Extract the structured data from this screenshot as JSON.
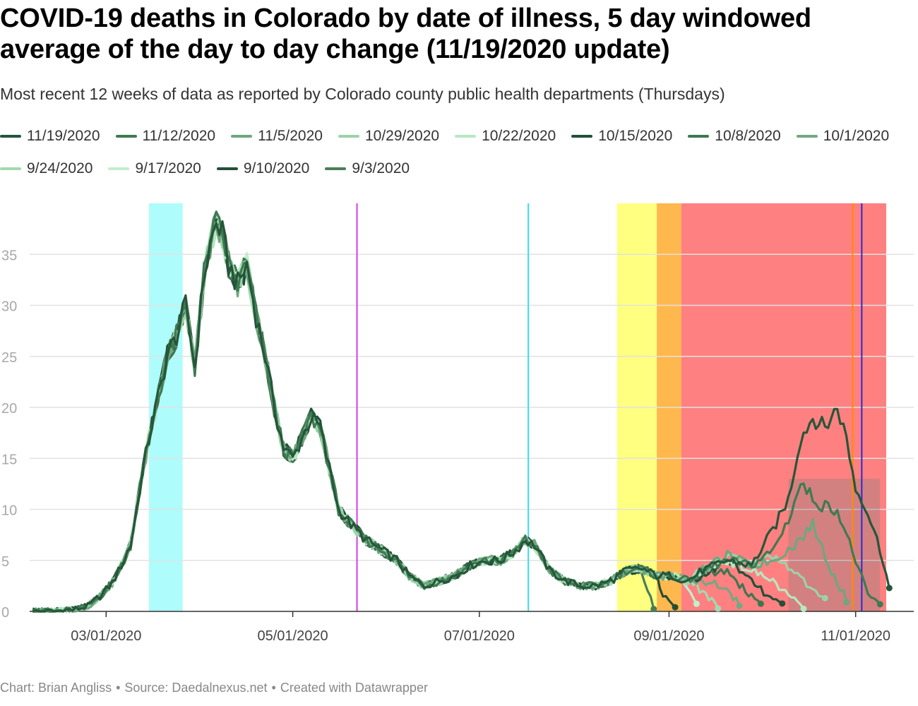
{
  "title": "COVID-19 deaths in Colorado by date of illness, 5 day windowed average of the day to day change (11/19/2020 update)",
  "subtitle": "Most recent 12 weeks of data as reported by Colorado county public health departments (Thursdays)",
  "footer": {
    "chart_by": "Chart: Brian Angliss",
    "source": "Source: Daedalnexus.net",
    "created": "Created with Datawrapper",
    "separator": "•"
  },
  "chart_data": {
    "type": "line",
    "title": "COVID-19 deaths in Colorado by date of illness, 5 day windowed average of the day to day change (11/19/2020 update)",
    "subtitle": "Most recent 12 weeks of data as reported by Colorado county public health departments (Thursdays)",
    "xlabel": "",
    "ylabel": "",
    "x_domain": [
      "2020-02-05",
      "2020-11-20"
    ],
    "ylim": [
      0,
      40
    ],
    "y_ticks": [
      0,
      5,
      10,
      15,
      20,
      25,
      30,
      35
    ],
    "x_ticks": [
      {
        "date": "2020-03-01",
        "label": "03/01/2020"
      },
      {
        "date": "2020-05-01",
        "label": "05/01/2020"
      },
      {
        "date": "2020-07-01",
        "label": "07/01/2020"
      },
      {
        "date": "2020-09-01",
        "label": "09/01/2020"
      },
      {
        "date": "2020-11-01",
        "label": "11/01/2020"
      }
    ],
    "grid": "horizontal",
    "legend_position": "top",
    "shaded_periods": [
      {
        "start": "2020-03-15",
        "end": "2020-03-26",
        "color": "#aefcfc"
      },
      {
        "start": "2020-08-15",
        "end": "2020-08-28",
        "color": "#ffff80"
      },
      {
        "start": "2020-08-28",
        "end": "2020-09-05",
        "color": "#ffb84d"
      },
      {
        "start": "2020-09-05",
        "end": "2020-11-11",
        "color": "#ff8080"
      }
    ],
    "event_lines": [
      {
        "date": "2020-05-22",
        "color": "#d43de2"
      },
      {
        "date": "2020-07-17",
        "color": "#33e0f0"
      },
      {
        "date": "2020-10-31",
        "color": "#ff8a00"
      },
      {
        "date": "2020-11-03",
        "color": "#2a2ad6"
      }
    ],
    "highlight_area": {
      "start": "2020-10-10",
      "end": "2020-11-09",
      "color": "#808080",
      "opacity": 0.35
    },
    "base_curve": [
      [
        "2020-02-06",
        0
      ],
      [
        "2020-02-13",
        0
      ],
      [
        "2020-02-20",
        0.2
      ],
      [
        "2020-02-24",
        0.5
      ],
      [
        "2020-02-28",
        1.5
      ],
      [
        "2020-03-03",
        2.8
      ],
      [
        "2020-03-06",
        4.5
      ],
      [
        "2020-03-09",
        6.5
      ],
      [
        "2020-03-12",
        12
      ],
      [
        "2020-03-15",
        17
      ],
      [
        "2020-03-18",
        21
      ],
      [
        "2020-03-21",
        25
      ],
      [
        "2020-03-24",
        27
      ],
      [
        "2020-03-27",
        30
      ],
      [
        "2020-03-30",
        24
      ],
      [
        "2020-04-02",
        33
      ],
      [
        "2020-04-04",
        36
      ],
      [
        "2020-04-06",
        38
      ],
      [
        "2020-04-08",
        37
      ],
      [
        "2020-04-10",
        34
      ],
      [
        "2020-04-13",
        32
      ],
      [
        "2020-04-16",
        34
      ],
      [
        "2020-04-19",
        29
      ],
      [
        "2020-04-22",
        25
      ],
      [
        "2020-04-25",
        20
      ],
      [
        "2020-04-28",
        16
      ],
      [
        "2020-05-01",
        15
      ],
      [
        "2020-05-04",
        17
      ],
      [
        "2020-05-07",
        19
      ],
      [
        "2020-05-10",
        18
      ],
      [
        "2020-05-13",
        14
      ],
      [
        "2020-05-16",
        10
      ],
      [
        "2020-05-20",
        8.5
      ],
      [
        "2020-05-25",
        7
      ],
      [
        "2020-05-30",
        6
      ],
      [
        "2020-06-04",
        5
      ],
      [
        "2020-06-08",
        3.5
      ],
      [
        "2020-06-13",
        2.5
      ],
      [
        "2020-06-18",
        3
      ],
      [
        "2020-06-23",
        3.5
      ],
      [
        "2020-06-28",
        4.5
      ],
      [
        "2020-07-03",
        5
      ],
      [
        "2020-07-08",
        5
      ],
      [
        "2020-07-13",
        6
      ],
      [
        "2020-07-16",
        7
      ],
      [
        "2020-07-19",
        6.5
      ],
      [
        "2020-07-24",
        4
      ],
      [
        "2020-07-29",
        3
      ],
      [
        "2020-08-03",
        2.5
      ],
      [
        "2020-08-08",
        2.5
      ],
      [
        "2020-08-13",
        3
      ],
      [
        "2020-08-18",
        4
      ],
      [
        "2020-08-23",
        4.2
      ],
      [
        "2020-08-28",
        3.5
      ],
      [
        "2020-09-02",
        3.5
      ],
      [
        "2020-09-07",
        3
      ]
    ],
    "series": [
      {
        "name": "11/19/2020",
        "color": "#26563a",
        "tail": [
          [
            "2020-09-12",
            4
          ],
          [
            "2020-09-20",
            5
          ],
          [
            "2020-09-28",
            4.5
          ],
          [
            "2020-10-05",
            8
          ],
          [
            "2020-10-10",
            11
          ],
          [
            "2020-10-14",
            17
          ],
          [
            "2020-10-18",
            19
          ],
          [
            "2020-10-22",
            18
          ],
          [
            "2020-10-26",
            20
          ],
          [
            "2020-10-29",
            17
          ],
          [
            "2020-11-01",
            12
          ],
          [
            "2020-11-04",
            10.5
          ],
          [
            "2020-11-07",
            8
          ],
          [
            "2020-11-10",
            5
          ],
          [
            "2020-11-12",
            2.2
          ]
        ]
      },
      {
        "name": "11/12/2020",
        "color": "#3e7a52",
        "tail": [
          [
            "2020-09-12",
            4
          ],
          [
            "2020-09-20",
            5
          ],
          [
            "2020-09-28",
            4.5
          ],
          [
            "2020-10-05",
            6
          ],
          [
            "2020-10-10",
            9
          ],
          [
            "2020-10-14",
            12.5
          ],
          [
            "2020-10-20",
            10.5
          ],
          [
            "2020-10-26",
            10
          ],
          [
            "2020-11-01",
            5
          ],
          [
            "2020-11-05",
            1.5
          ],
          [
            "2020-11-09",
            0.8
          ]
        ]
      },
      {
        "name": "11/5/2020",
        "color": "#6ea77e",
        "tail": [
          [
            "2020-09-12",
            4
          ],
          [
            "2020-09-20",
            5.5
          ],
          [
            "2020-09-28",
            4.5
          ],
          [
            "2020-10-05",
            5
          ],
          [
            "2020-10-12",
            6.5
          ],
          [
            "2020-10-18",
            8.5
          ],
          [
            "2020-10-24",
            4
          ],
          [
            "2020-10-29",
            1.2
          ]
        ]
      },
      {
        "name": "10/29/2020",
        "color": "#9ad3a9",
        "tail": [
          [
            "2020-09-12",
            4
          ],
          [
            "2020-09-20",
            5.5
          ],
          [
            "2020-09-28",
            4.5
          ],
          [
            "2020-10-05",
            5.5
          ],
          [
            "2020-10-12",
            4
          ],
          [
            "2020-10-18",
            2
          ],
          [
            "2020-10-22",
            1
          ]
        ]
      },
      {
        "name": "10/22/2020",
        "color": "#b6e8c2",
        "tail": [
          [
            "2020-09-12",
            4
          ],
          [
            "2020-09-20",
            5
          ],
          [
            "2020-09-28",
            4
          ],
          [
            "2020-10-05",
            3
          ],
          [
            "2020-10-10",
            1.5
          ],
          [
            "2020-10-15",
            0.4
          ]
        ]
      },
      {
        "name": "10/15/2020",
        "color": "#22503a",
        "tail": [
          [
            "2020-09-12",
            3.5
          ],
          [
            "2020-09-20",
            5
          ],
          [
            "2020-09-28",
            3
          ],
          [
            "2020-10-03",
            1.5
          ],
          [
            "2020-10-08",
            0.6
          ]
        ]
      },
      {
        "name": "10/8/2020",
        "color": "#3f7651",
        "tail": [
          [
            "2020-09-12",
            3.5
          ],
          [
            "2020-09-20",
            4
          ],
          [
            "2020-09-26",
            2
          ],
          [
            "2020-10-01",
            0.8
          ]
        ]
      },
      {
        "name": "10/1/2020",
        "color": "#74a882",
        "tail": [
          [
            "2020-09-12",
            3
          ],
          [
            "2020-09-18",
            2.5
          ],
          [
            "2020-09-24",
            0.8
          ]
        ]
      },
      {
        "name": "9/24/2020",
        "color": "#a3d9b0",
        "tail": [
          [
            "2020-09-10",
            2.5
          ],
          [
            "2020-09-13",
            1.5
          ],
          [
            "2020-09-17",
            0.5
          ]
        ]
      },
      {
        "name": "9/17/2020",
        "color": "#c0efcb",
        "tail": [
          [
            "2020-09-07",
            2.5
          ],
          [
            "2020-09-10",
            0.5
          ]
        ]
      },
      {
        "name": "9/10/2020",
        "color": "#234e36",
        "tail": [
          [
            "2020-08-30",
            1.5
          ],
          [
            "2020-09-03",
            0.3
          ]
        ]
      },
      {
        "name": "9/3/2020",
        "color": "#4a7d57",
        "tail": [
          [
            "2020-08-24",
            2.5
          ],
          [
            "2020-08-27",
            0.5
          ]
        ]
      }
    ]
  }
}
